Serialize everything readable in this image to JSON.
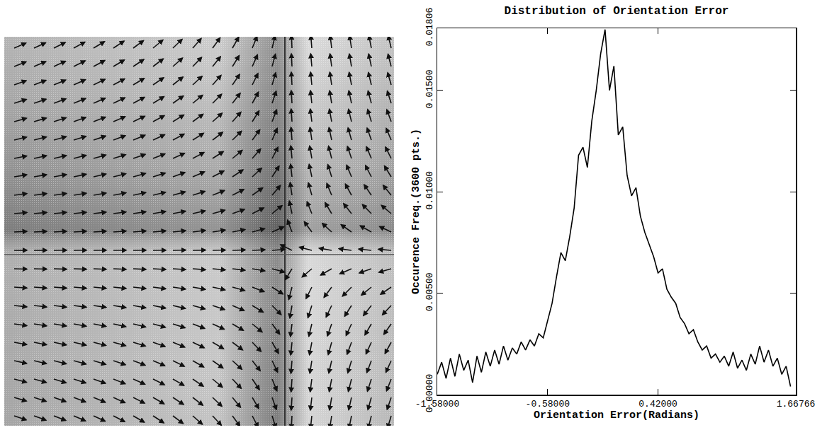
{
  "chart_data": {
    "type": "line",
    "title": "Distribution of Orientation Error",
    "x_label": "Orientation Error(Radians)",
    "y_label": "Occurence Freq.(3600 pts.)",
    "color": "#000000",
    "grid": false,
    "xlim": [
      -1.58,
      1.66766
    ],
    "xticks": [
      {
        "value": -1.58,
        "label": "-1.58000"
      },
      {
        "value": -0.58,
        "label": "-0.58000"
      },
      {
        "value": 0.42,
        "label": "0.42000"
      },
      {
        "value": 1.66766,
        "label": "1.66766"
      }
    ],
    "ylim": [
      0,
      0.01806
    ],
    "yticks": [
      {
        "value": 0,
        "label": "0.00000"
      },
      {
        "value": 0.005,
        "label": "0.00500"
      },
      {
        "value": 0.01,
        "label": "0.01000"
      },
      {
        "value": 0.015,
        "label": "0.01500"
      },
      {
        "value": 0.01806,
        "label": "0.01806"
      }
    ],
    "x": [
      -1.58,
      -1.54,
      -1.5,
      -1.46,
      -1.42,
      -1.38,
      -1.34,
      -1.3,
      -1.26,
      -1.22,
      -1.18,
      -1.14,
      -1.1,
      -1.06,
      -1.02,
      -0.98,
      -0.94,
      -0.9,
      -0.86,
      -0.82,
      -0.78,
      -0.74,
      -0.7,
      -0.66,
      -0.62,
      -0.58,
      -0.54,
      -0.5,
      -0.46,
      -0.42,
      -0.38,
      -0.34,
      -0.3,
      -0.26,
      -0.22,
      -0.18,
      -0.14,
      -0.1,
      -0.06,
      -0.02,
      0.02,
      0.06,
      0.1,
      0.14,
      0.18,
      0.22,
      0.26,
      0.3,
      0.34,
      0.38,
      0.42,
      0.46,
      0.5,
      0.54,
      0.58,
      0.62,
      0.66,
      0.7,
      0.74,
      0.78,
      0.82,
      0.86,
      0.9,
      0.94,
      0.98,
      1.02,
      1.06,
      1.1,
      1.14,
      1.18,
      1.22,
      1.26,
      1.3,
      1.34,
      1.38,
      1.42,
      1.46,
      1.5,
      1.54,
      1.58,
      1.62
    ],
    "values": [
      0.001,
      0.0016,
      0.0008,
      0.0018,
      0.0009,
      0.002,
      0.0012,
      0.0017,
      0.0006,
      0.0019,
      0.0011,
      0.0021,
      0.0014,
      0.0022,
      0.0015,
      0.0024,
      0.0017,
      0.0023,
      0.002,
      0.0026,
      0.0022,
      0.0027,
      0.0024,
      0.003,
      0.0028,
      0.0036,
      0.0045,
      0.0058,
      0.007,
      0.0066,
      0.0078,
      0.0092,
      0.0118,
      0.0122,
      0.0112,
      0.0135,
      0.015,
      0.0168,
      0.018,
      0.015,
      0.0162,
      0.0128,
      0.0132,
      0.0108,
      0.0098,
      0.0102,
      0.0088,
      0.008,
      0.0074,
      0.0068,
      0.006,
      0.0062,
      0.0052,
      0.0048,
      0.0045,
      0.0038,
      0.0035,
      0.003,
      0.0032,
      0.0026,
      0.0022,
      0.0024,
      0.0018,
      0.002,
      0.0016,
      0.0019,
      0.0014,
      0.0021,
      0.0013,
      0.0017,
      0.0012,
      0.002,
      0.0015,
      0.0024,
      0.0016,
      0.0022,
      0.0014,
      0.0018,
      0.001,
      0.0014,
      0.0004
    ]
  }
}
